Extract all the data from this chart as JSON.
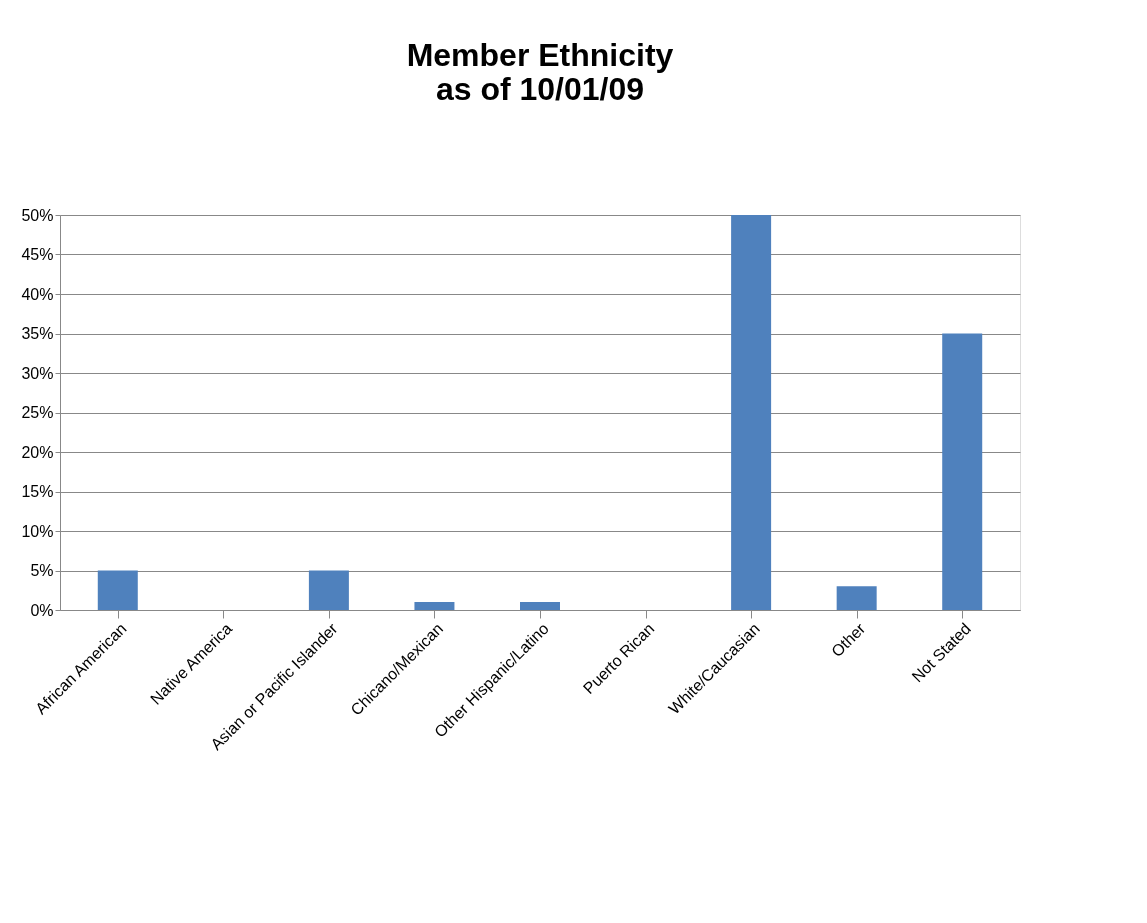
{
  "chart_data": {
    "type": "bar",
    "title": [
      "Member Ethnicity",
      "as of 10/01/09"
    ],
    "categories": [
      "African American",
      "Native America",
      "Asian or Pacific Islander",
      "Chicano/Mexican",
      "Other Hispanic/Latino",
      "Puerto Rican",
      "White/Caucasian",
      "Other",
      "Not Stated"
    ],
    "values": [
      5,
      0,
      5,
      1,
      1,
      0,
      50,
      3,
      35
    ],
    "color": "#4f81bd",
    "ylim": [
      0,
      50
    ],
    "yticks": [
      {
        "value": 0,
        "label": "0%"
      },
      {
        "value": 5,
        "label": "5%"
      },
      {
        "value": 10,
        "label": "10%"
      },
      {
        "value": 15,
        "label": "15%"
      },
      {
        "value": 20,
        "label": "20%"
      },
      {
        "value": 25,
        "label": "25%"
      },
      {
        "value": 30,
        "label": "30%"
      },
      {
        "value": 35,
        "label": "35%"
      },
      {
        "value": 40,
        "label": "40%"
      },
      {
        "value": 45,
        "label": "45%"
      },
      {
        "value": 50,
        "label": "50%"
      }
    ],
    "grid": "y"
  }
}
